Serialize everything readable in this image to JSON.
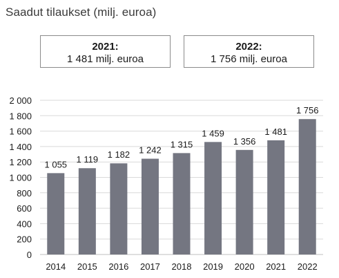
{
  "title": "Saadut tilaukset (milj. euroa)",
  "summary": [
    {
      "year_label": "2021:",
      "value_label": "1 481 milj. euroa"
    },
    {
      "year_label": "2022:",
      "value_label": "1 756 milj. euroa"
    }
  ],
  "colors": {
    "bar": "#747681",
    "grid": "#d9d9d9"
  },
  "chart_data": {
    "type": "bar",
    "title": "Saadut tilaukset (milj. euroa)",
    "categories": [
      "2014",
      "2015",
      "2016",
      "2017",
      "2018",
      "2019",
      "2020",
      "2021",
      "2022"
    ],
    "values": [
      1055,
      1119,
      1182,
      1242,
      1315,
      1459,
      1356,
      1481,
      1756
    ],
    "value_labels": [
      "1 055",
      "1 119",
      "1 182",
      "1 242",
      "1 315",
      "1 459",
      "1 356",
      "1 481",
      "1 756"
    ],
    "yticks": [
      0,
      200,
      400,
      600,
      800,
      1000,
      1200,
      1400,
      1600,
      1800,
      2000
    ],
    "ytick_labels": [
      "0",
      "200",
      "400",
      "600",
      "800",
      "1 000",
      "1 200",
      "1 400",
      "1 600",
      "1 800",
      "2 000"
    ],
    "ylim": [
      0,
      2000
    ],
    "grid": true,
    "legend": "none"
  }
}
